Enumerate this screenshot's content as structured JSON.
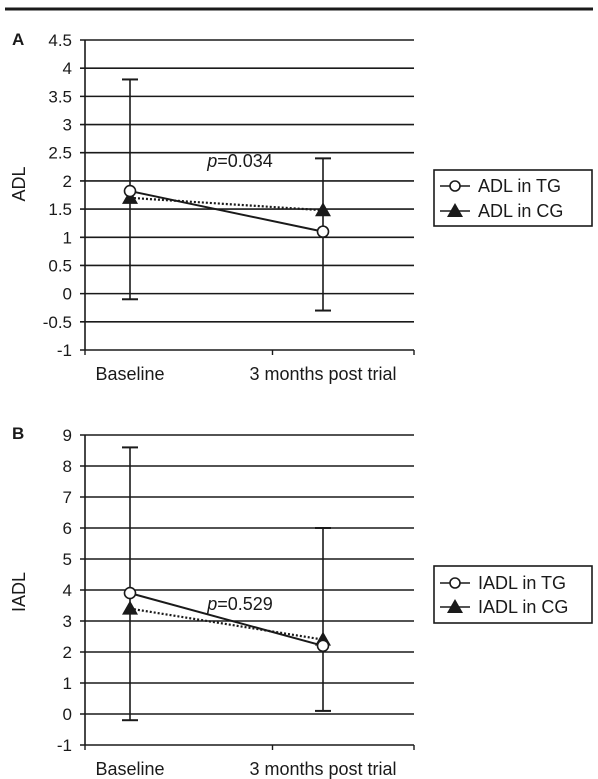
{
  "chart_data": [
    {
      "type": "line",
      "panel_label": "A",
      "ylabel": "ADL",
      "categories": [
        "Baseline",
        "3 months post trial"
      ],
      "ylim": [
        -1,
        4.5
      ],
      "yticks": [
        "4.5",
        "4",
        "3.5",
        "3",
        "2.5",
        "2",
        "1.5",
        "1",
        "0.5",
        "0",
        "-0.5",
        "-1"
      ],
      "grid": true,
      "legend_position": "right",
      "annotation": {
        "prefix": "p",
        "value": "=0.034"
      },
      "series": [
        {
          "name": "ADL in TG",
          "marker": "circle-open",
          "line": "solid",
          "values": [
            1.82,
            1.1
          ],
          "error_low": [
            -0.1,
            -0.3
          ],
          "error_high": [
            3.8,
            2.4
          ]
        },
        {
          "name": "ADL in CG",
          "marker": "triangle-filled",
          "line": "dotted",
          "values": [
            1.7,
            1.48
          ]
        }
      ]
    },
    {
      "type": "line",
      "panel_label": "B",
      "ylabel": "IADL",
      "categories": [
        "Baseline",
        "3 months post trial"
      ],
      "ylim": [
        -1,
        9
      ],
      "yticks": [
        "9",
        "8",
        "7",
        "6",
        "5",
        "4",
        "3",
        "2",
        "1",
        "0",
        "-1"
      ],
      "grid": true,
      "legend_position": "right",
      "annotation": {
        "prefix": "p",
        "value": "=0.529"
      },
      "series": [
        {
          "name": "IADL in TG",
          "marker": "circle-open",
          "line": "solid",
          "values": [
            3.9,
            2.2
          ],
          "error_low": [
            -0.2,
            0.1
          ],
          "error_high": [
            8.6,
            6.0
          ]
        },
        {
          "name": "IADL in CG",
          "marker": "triangle-filled",
          "line": "dotted",
          "values": [
            3.4,
            2.4
          ]
        }
      ]
    }
  ]
}
